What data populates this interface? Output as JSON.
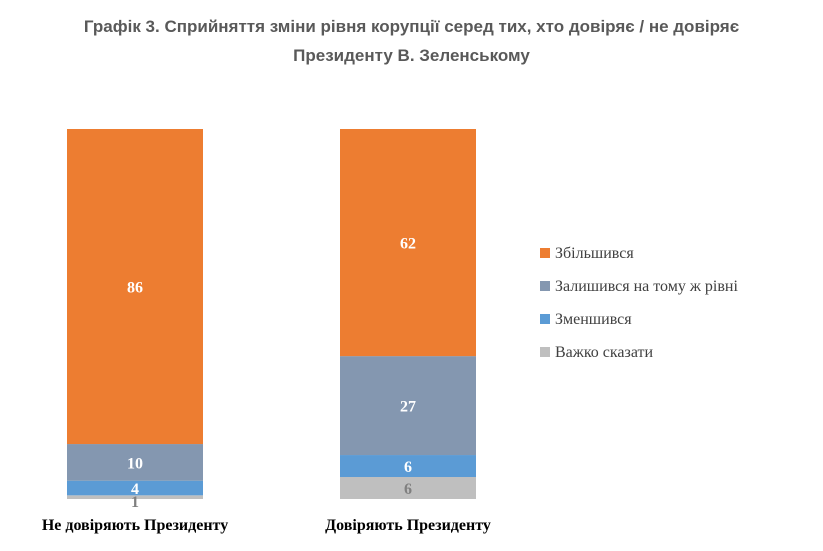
{
  "chart_data": {
    "type": "bar",
    "stacked": true,
    "title_lines": [
      "Графік 3. Сприйняття зміни рівня корупції серед тих, хто довіряє / не довіряє",
      "Президенту В. Зеленському"
    ],
    "categories": [
      "Не довіряють Президенту",
      "Довіряють Президенту"
    ],
    "series": [
      {
        "name": "Важко сказати",
        "values": [
          1,
          6
        ],
        "color": "#bfbfbf",
        "label_color": "#7f7f7f"
      },
      {
        "name": "Зменшився",
        "values": [
          4,
          6
        ],
        "color": "#5b9bd5",
        "label_color": "#ffffff"
      },
      {
        "name": "Залишився на тому ж рівні",
        "values": [
          10,
          27
        ],
        "color": "#8497b0",
        "label_color": "#ffffff"
      },
      {
        "name": "Збільшився",
        "values": [
          86,
          62
        ],
        "color": "#ed7d31",
        "label_color": "#ffffff"
      }
    ],
    "legend_order": [
      "Збільшився",
      "Залишився на тому ж рівні",
      "Зменшився",
      "Важко сказати"
    ],
    "legend_position": "right",
    "ylim": [
      0,
      100
    ],
    "grid": false
  }
}
